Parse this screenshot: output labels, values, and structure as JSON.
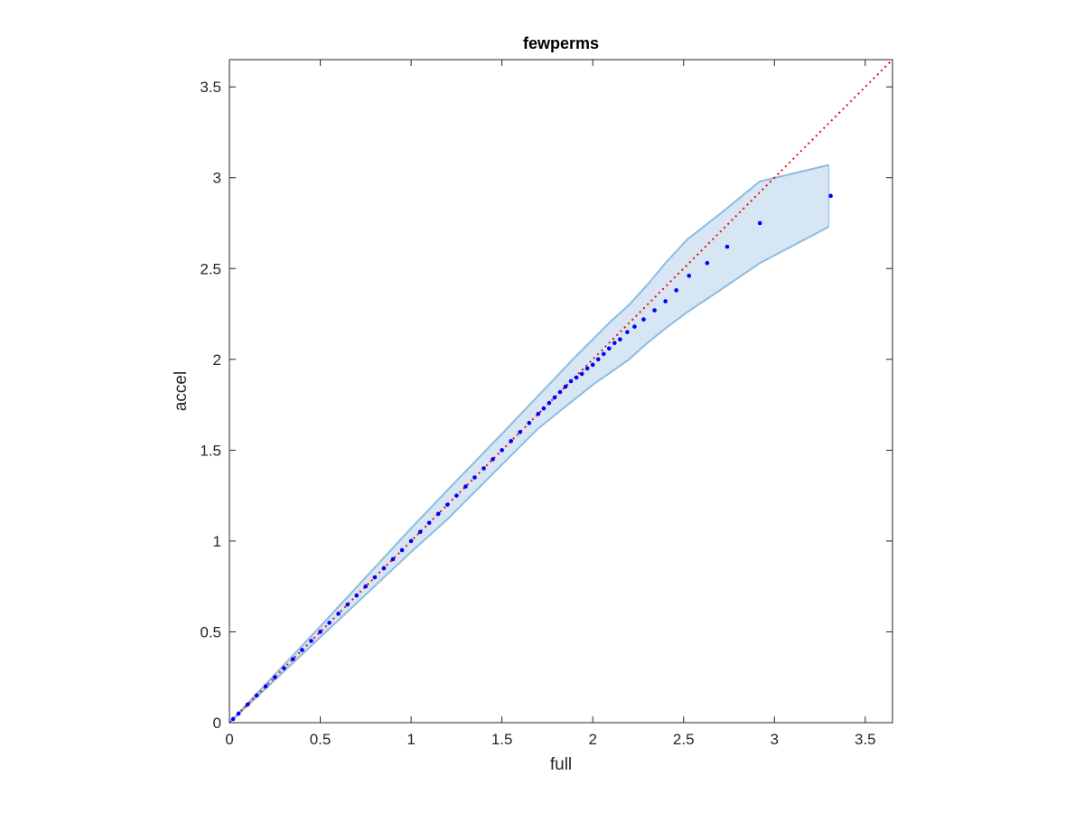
{
  "chart_data": {
    "type": "scatter",
    "title": "fewperms",
    "xlabel": "full",
    "ylabel": "accel",
    "xlim": [
      0,
      3.65
    ],
    "ylim": [
      0,
      3.65
    ],
    "xticks": [
      "0",
      "0.5",
      "1",
      "1.5",
      "2",
      "2.5",
      "3",
      "3.5"
    ],
    "yticks": [
      "0",
      "0.5",
      "1",
      "1.5",
      "2",
      "2.5",
      "3",
      "3.5"
    ],
    "grid": false,
    "colors": {
      "points": "#0000ff",
      "reference_line": "#ff0000",
      "band_fill": "#d6e6f4",
      "band_edge": "#8cbce0",
      "axes": "#262626"
    },
    "reference_line": {
      "style": "dotted",
      "x": [
        0,
        3.65
      ],
      "y": [
        0,
        3.65
      ]
    },
    "band": {
      "x": [
        0,
        0.5,
        1.0,
        1.2,
        1.5,
        1.7,
        1.9,
        2.0,
        2.1,
        2.2,
        2.3,
        2.4,
        2.52,
        2.7,
        2.92,
        3.3
      ],
      "upper": [
        0,
        0.53,
        1.07,
        1.28,
        1.59,
        1.8,
        2.01,
        2.11,
        2.21,
        2.3,
        2.41,
        2.53,
        2.66,
        2.8,
        2.98,
        3.07
      ],
      "lower": [
        0,
        0.47,
        0.94,
        1.12,
        1.42,
        1.62,
        1.78,
        1.86,
        1.93,
        2.0,
        2.09,
        2.17,
        2.26,
        2.38,
        2.53,
        2.73
      ]
    },
    "series": [
      {
        "x": [
          0.02,
          0.05,
          0.1,
          0.15,
          0.2,
          0.25,
          0.3,
          0.35,
          0.4,
          0.45,
          0.5,
          0.55,
          0.6,
          0.65,
          0.7,
          0.75,
          0.8,
          0.85,
          0.9,
          0.95,
          1.0,
          1.05,
          1.1,
          1.15,
          1.2,
          1.25,
          1.3,
          1.35,
          1.4,
          1.45,
          1.5,
          1.55,
          1.6,
          1.65,
          1.7,
          1.73,
          1.76,
          1.79,
          1.82,
          1.85,
          1.88,
          1.91,
          1.94,
          1.97,
          2.0,
          2.03,
          2.06,
          2.09,
          2.12,
          2.15,
          2.19,
          2.23,
          2.28,
          2.34,
          2.4,
          2.46,
          2.53,
          2.63,
          2.74,
          2.92,
          3.31
        ],
        "y": [
          0.02,
          0.05,
          0.1,
          0.15,
          0.2,
          0.25,
          0.3,
          0.35,
          0.4,
          0.45,
          0.5,
          0.55,
          0.6,
          0.65,
          0.7,
          0.75,
          0.8,
          0.85,
          0.9,
          0.95,
          1.0,
          1.05,
          1.1,
          1.15,
          1.2,
          1.25,
          1.3,
          1.35,
          1.4,
          1.45,
          1.5,
          1.55,
          1.6,
          1.65,
          1.7,
          1.73,
          1.76,
          1.79,
          1.82,
          1.85,
          1.88,
          1.9,
          1.92,
          1.95,
          1.97,
          2.0,
          2.03,
          2.06,
          2.09,
          2.11,
          2.15,
          2.18,
          2.22,
          2.27,
          2.32,
          2.38,
          2.46,
          2.53,
          2.62,
          2.75,
          2.9
        ]
      }
    ]
  }
}
